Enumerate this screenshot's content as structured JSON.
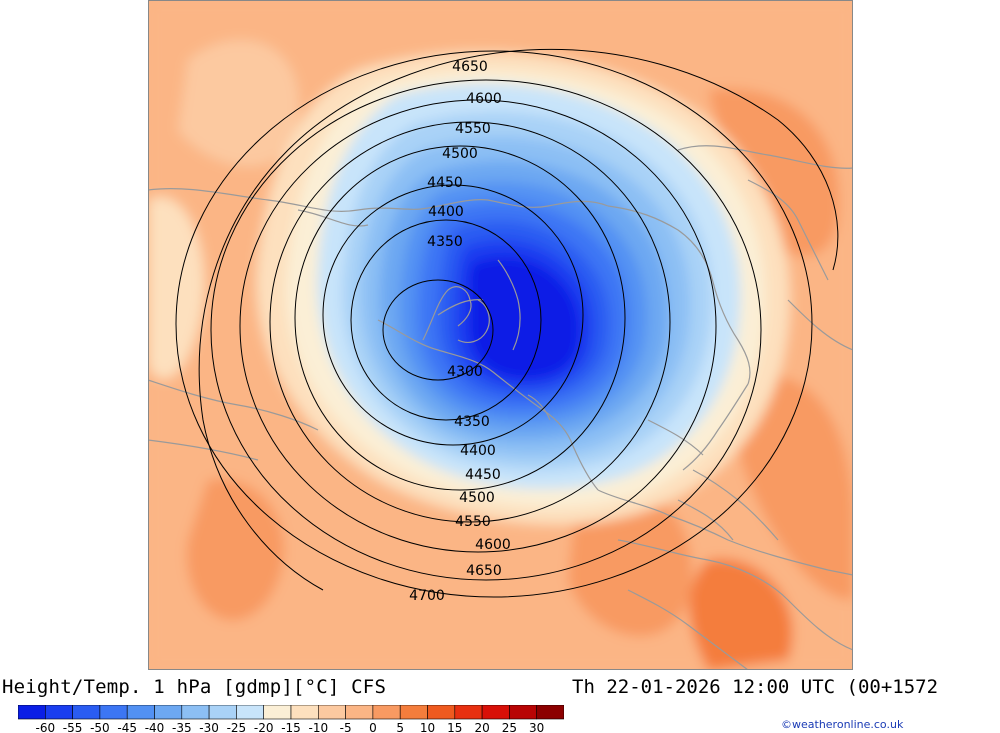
{
  "header": {
    "title": "Height/Temp. 1 hPa [gdmp][°C] CFS",
    "valid_time": "Th 22-01-2026 12:00 UTC (00+1572"
  },
  "footer": {
    "credit": "©weatheronline.co.uk"
  },
  "legend": {
    "colors": [
      "#0a1ee6",
      "#1a3ef0",
      "#2a5cf2",
      "#3c76f4",
      "#5291f3",
      "#6da8f2",
      "#8cbff4",
      "#a9d2f7",
      "#c8e4fa",
      "#fbefd6",
      "#fde0be",
      "#fcc9a0",
      "#fbb585",
      "#f89a62",
      "#f47d3c",
      "#ef5a1f",
      "#e83010",
      "#d81008",
      "#b80404",
      "#8c0000"
    ],
    "labels": [
      "-60",
      "-55",
      "-50",
      "-45",
      "-40",
      "-35",
      "-30",
      "-25",
      "-20",
      "-15",
      "-10",
      "-5",
      "0",
      "5",
      "10",
      "15",
      "20",
      "25",
      "30"
    ]
  },
  "map": {
    "contour_labels": [
      "4300",
      "4350",
      "4350",
      "4400",
      "4400",
      "4450",
      "4450",
      "4500",
      "4500",
      "4550",
      "4550",
      "4600",
      "4600",
      "4650",
      "4650",
      "4700"
    ]
  }
}
